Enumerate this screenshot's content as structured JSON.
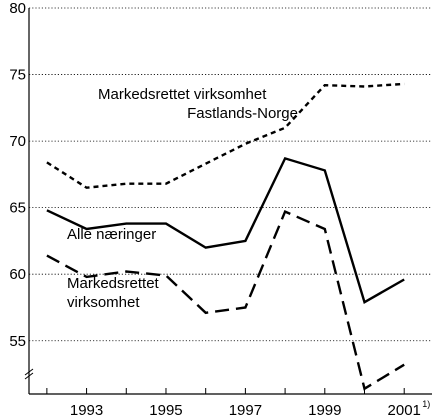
{
  "chart_data": {
    "type": "line",
    "x": [
      1992,
      1993,
      1994,
      1995,
      1996,
      1997,
      1998,
      1999,
      2000,
      2001
    ],
    "ylim": [
      51,
      80
    ],
    "yticks": [
      55,
      60,
      65,
      70,
      75,
      80
    ],
    "x_tick_labels": [
      {
        "x": 1993,
        "label": "1993"
      },
      {
        "x": 1995,
        "label": "1995"
      },
      {
        "x": 1997,
        "label": "1997"
      },
      {
        "x": 1999,
        "label": "1999"
      },
      {
        "x": 2001,
        "label": "2001",
        "superscript": "1)"
      }
    ],
    "grid": "horizontal dotted",
    "series": [
      {
        "label_lines": [
          "Markedsrettet virksomhet",
          "Fastlands-Norge"
        ],
        "line_style": "short-dash",
        "values": [
          68.4,
          66.5,
          66.8,
          66.8,
          68.3,
          69.8,
          71.0,
          74.2,
          74.1,
          74.3
        ]
      },
      {
        "label_lines": [
          "Alle næringer"
        ],
        "line_style": "solid",
        "values": [
          64.8,
          63.4,
          63.8,
          63.8,
          62.0,
          62.5,
          68.7,
          67.8,
          57.9,
          59.6
        ]
      },
      {
        "label_lines": [
          "Markedsrettet",
          "virksomhet"
        ],
        "line_style": "long-dash",
        "values": [
          61.4,
          59.8,
          60.2,
          59.9,
          57.1,
          57.5,
          64.7,
          63.4,
          51.4,
          53.2
        ]
      }
    ],
    "colors": {
      "line": "#000000",
      "grid": "#000000",
      "background": "#ffffff"
    }
  }
}
